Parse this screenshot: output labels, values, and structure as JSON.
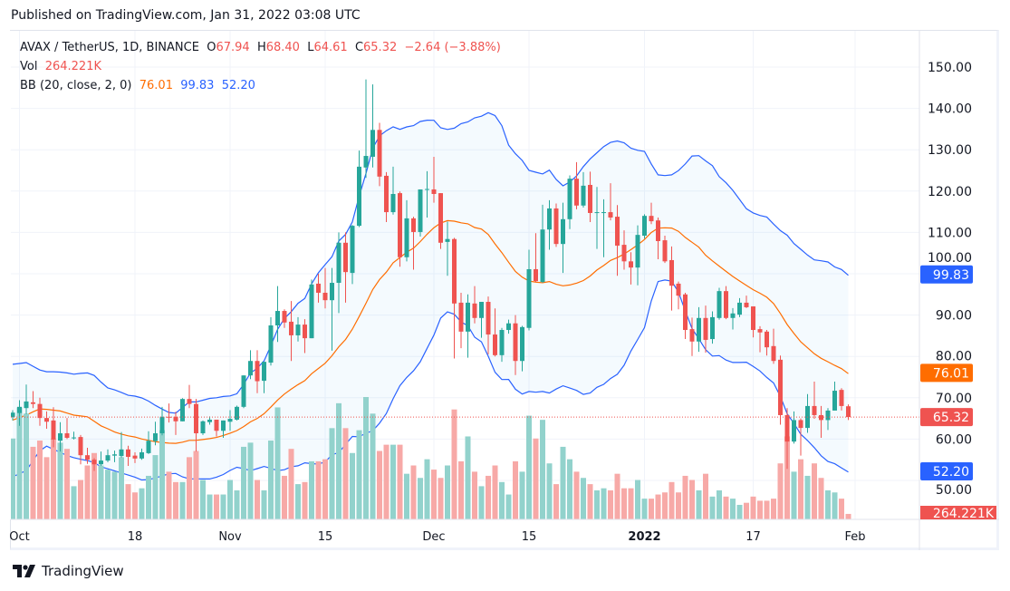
{
  "header": {
    "published": "Published on TradingView.com, Jan 31, 2022 03:08 UTC"
  },
  "legend": {
    "symbol": "AVAX / TetherUS, 1D, BINANCE",
    "o_label": "O",
    "o": "67.94",
    "h_label": "H",
    "h": "68.40",
    "l_label": "L",
    "l": "64.61",
    "c_label": "C",
    "c": "65.32",
    "change": "−2.64 (−3.88%)",
    "vol_label": "Vol",
    "vol": "264.221K",
    "bb_label": "BB (20, close, 2, 0)",
    "bb_basis": "76.01",
    "bb_upper": "99.83",
    "bb_lower": "52.20"
  },
  "footer": {
    "logo_text": "TradingView",
    "logo_icon": "tradingview-logo-icon"
  },
  "colors": {
    "up": "#26a69a",
    "down": "#ef5350",
    "vol_up": "#92d2cc",
    "vol_down": "#f7a9a7",
    "bb_band": "#2962ff",
    "bb_basis": "#ff6d00",
    "bb_fill": "#2196f3"
  },
  "chart_data": {
    "type": "candlestick",
    "title": "",
    "ylim": [
      50,
      150
    ],
    "grid": true,
    "y_ticks": [
      "150.00",
      "140.00",
      "130.00",
      "120.00",
      "110.00",
      "100.00",
      "90.00",
      "80.00",
      "70.00",
      "60.00",
      "50.00"
    ],
    "y_tick_values": [
      150,
      140,
      130,
      120,
      110,
      100,
      90,
      80,
      70,
      60,
      50
    ],
    "x_ticks": [
      {
        "label": "Oct",
        "date": "2021-10-01"
      },
      {
        "label": "18",
        "date": "2021-10-18"
      },
      {
        "label": "Nov",
        "date": "2021-11-01"
      },
      {
        "label": "15",
        "date": "2021-11-15"
      },
      {
        "label": "Dec",
        "date": "2021-12-01"
      },
      {
        "label": "15",
        "date": "2021-12-15"
      },
      {
        "label": "2022",
        "date": "2022-01-01",
        "bold": true
      },
      {
        "label": "17",
        "date": "2022-01-17"
      },
      {
        "label": "Feb",
        "date": "2022-02-01"
      }
    ],
    "price_labels": [
      {
        "text": "99.83",
        "value": 99.83,
        "color": "#2962ff"
      },
      {
        "text": "76.01",
        "value": 76.01,
        "color": "#ff6d00"
      },
      {
        "text": "65.32",
        "value": 65.32,
        "color": "#ef5350"
      },
      {
        "text": "52.20",
        "value": 52.2,
        "color": "#2962ff"
      }
    ],
    "volume_label": {
      "text": "264.221K",
      "color": "#ef5350"
    },
    "last_close": 65.32,
    "bb_period": 20,
    "bb_mult": 2,
    "bb_early": {
      "upper": [
        78.1,
        78.3,
        78.5,
        77.6,
        76.7,
        76.3,
        76.3,
        76.2,
        76.0,
        75.7,
        75.9,
        76.0,
        75.4,
        73.8,
        72.4,
        71.9,
        71.3,
        70.6,
        70.4
      ],
      "basis": [
        64.6,
        65.2,
        65.8,
        66.6,
        67.3,
        67.2,
        67.0,
        66.8,
        66.3,
        65.8,
        65.6,
        65.4,
        64.3,
        63.2,
        62.5,
        61.7,
        61.2,
        60.8,
        60.5
      ],
      "lower": [
        50.9,
        51.6,
        52.4,
        54.8,
        57.2,
        58.3,
        57.5,
        56.8,
        56.0,
        55.5,
        55.1,
        54.8,
        54.3,
        53.3,
        52.8,
        52.3,
        51.8,
        51.3,
        50.8
      ]
    },
    "candle_fields": [
      "date",
      "open",
      "high",
      "low",
      "close",
      "volume_k"
    ],
    "candles": [
      [
        "2021-09-30",
        65.3,
        67.0,
        64.5,
        66.4,
        3900
      ],
      [
        "2021-10-01",
        66.3,
        69.4,
        63.2,
        67.8,
        5400
      ],
      [
        "2021-10-02",
        67.5,
        73.2,
        66.0,
        69.1,
        5100
      ],
      [
        "2021-10-03",
        68.9,
        71.6,
        67.5,
        68.5,
        3500
      ],
      [
        "2021-10-04",
        68.5,
        70.0,
        63.2,
        65.1,
        3800
      ],
      [
        "2021-10-05",
        65.1,
        66.7,
        62.5,
        64.2,
        3000
      ],
      [
        "2021-10-06",
        64.5,
        67.7,
        58.0,
        59.9,
        3900
      ],
      [
        "2021-10-07",
        59.6,
        64.1,
        57.0,
        61.4,
        3700
      ],
      [
        "2021-10-08",
        61.4,
        65.1,
        60.0,
        60.3,
        3400
      ],
      [
        "2021-10-09",
        60.3,
        61.8,
        59.9,
        60.4,
        1600
      ],
      [
        "2021-10-10",
        60.5,
        61.0,
        53.9,
        56.1,
        1900
      ],
      [
        "2021-10-11",
        56.1,
        57.9,
        54.0,
        55.0,
        2600
      ],
      [
        "2021-10-12",
        55.0,
        55.4,
        52.3,
        53.9,
        3200
      ],
      [
        "2021-10-13",
        53.9,
        57.0,
        53.5,
        54.8,
        2600
      ],
      [
        "2021-10-14",
        54.8,
        57.5,
        54.4,
        56.1,
        2400
      ],
      [
        "2021-10-15",
        56.0,
        57.2,
        54.4,
        56.3,
        2300
      ],
      [
        "2021-10-16",
        55.9,
        61.7,
        55.5,
        57.5,
        3000
      ],
      [
        "2021-10-17",
        57.5,
        58.4,
        53.5,
        55.7,
        1700
      ],
      [
        "2021-10-18",
        56.0,
        56.8,
        54.2,
        55.3,
        1300
      ],
      [
        "2021-10-19",
        55.3,
        57.7,
        55.0,
        56.8,
        1500
      ],
      [
        "2021-10-20",
        56.6,
        61.9,
        56.4,
        59.6,
        2100
      ],
      [
        "2021-10-21",
        59.5,
        64.2,
        58.5,
        61.4,
        3100
      ],
      [
        "2021-10-22",
        61.4,
        67.8,
        60.9,
        65.4,
        4300
      ],
      [
        "2021-10-23",
        65.4,
        68.6,
        64.0,
        65.2,
        2300
      ],
      [
        "2021-10-24",
        65.4,
        66.6,
        61.0,
        64.3,
        1800
      ],
      [
        "2021-10-25",
        64.3,
        69.9,
        64.3,
        69.7,
        1800
      ],
      [
        "2021-10-26",
        69.7,
        73.1,
        67.5,
        68.5,
        3000
      ],
      [
        "2021-10-27",
        68.5,
        69.7,
        57.0,
        61.4,
        3300
      ],
      [
        "2021-10-28",
        61.4,
        64.5,
        61.0,
        64.3,
        1900
      ],
      [
        "2021-10-29",
        64.1,
        65.5,
        63.5,
        64.7,
        1200
      ],
      [
        "2021-10-30",
        64.7,
        64.7,
        60.6,
        62.0,
        1200
      ],
      [
        "2021-10-31",
        62.0,
        64.5,
        60.3,
        64.5,
        1200
      ],
      [
        "2021-11-01",
        64.2,
        67.0,
        62.0,
        64.9,
        1900
      ],
      [
        "2021-11-02",
        64.7,
        68.1,
        64.5,
        67.8,
        1400
      ],
      [
        "2021-11-03",
        67.8,
        75.4,
        67.5,
        75.4,
        3500
      ],
      [
        "2021-11-04",
        75.4,
        81.5,
        74.5,
        78.9,
        3700
      ],
      [
        "2021-11-05",
        78.9,
        81.5,
        71.1,
        74.0,
        1900
      ],
      [
        "2021-11-06",
        74.1,
        78.7,
        71.1,
        78.7,
        1400
      ],
      [
        "2021-11-07",
        78.5,
        89.5,
        77.8,
        87.5,
        3800
      ],
      [
        "2021-11-08",
        87.5,
        97.0,
        83.5,
        91.0,
        5400
      ],
      [
        "2021-11-09",
        91.0,
        91.4,
        86.9,
        88.2,
        2100
      ],
      [
        "2021-11-10",
        88.4,
        93.4,
        78.9,
        85.1,
        3400
      ],
      [
        "2021-11-11",
        85.1,
        89.5,
        83.6,
        87.7,
        1700
      ],
      [
        "2021-11-12",
        87.7,
        89.0,
        80.8,
        84.4,
        1800
      ],
      [
        "2021-11-13",
        84.4,
        98.6,
        84.4,
        97.4,
        2800
      ],
      [
        "2021-11-14",
        97.6,
        100.0,
        93.0,
        95.4,
        2800
      ],
      [
        "2021-11-15",
        95.4,
        101.4,
        91.6,
        93.6,
        2900
      ],
      [
        "2021-11-16",
        93.6,
        101.4,
        81.4,
        97.8,
        4400
      ],
      [
        "2021-11-17",
        97.8,
        110.0,
        90.5,
        107.5,
        5600
      ],
      [
        "2021-11-18",
        107.5,
        110.0,
        93.0,
        100.4,
        4400
      ],
      [
        "2021-11-19",
        100.2,
        111.8,
        97.5,
        111.6,
        3200
      ],
      [
        "2021-11-20",
        111.6,
        129.8,
        111.3,
        125.9,
        4300
      ],
      [
        "2021-11-21",
        125.7,
        147.0,
        123.2,
        128.5,
        5900
      ],
      [
        "2021-11-22",
        128.3,
        145.8,
        125.7,
        134.8,
        5100
      ],
      [
        "2021-11-23",
        134.8,
        136.5,
        121.2,
        123.5,
        3300
      ],
      [
        "2021-11-24",
        123.7,
        124.6,
        112.5,
        114.9,
        3600
      ],
      [
        "2021-11-25",
        114.9,
        125.9,
        114.3,
        119.3,
        3600
      ],
      [
        "2021-11-26",
        119.5,
        119.9,
        101.7,
        104.0,
        3600
      ],
      [
        "2021-11-27",
        104.0,
        117.8,
        103.0,
        113.4,
        2200
      ],
      [
        "2021-11-28",
        113.4,
        113.8,
        101.0,
        110.1,
        2600
      ],
      [
        "2021-11-29",
        110.1,
        120.4,
        109.0,
        120.4,
        2000
      ],
      [
        "2021-11-30",
        120.3,
        124.8,
        113.6,
        120.5,
        2900
      ],
      [
        "2021-12-01",
        120.4,
        128.3,
        117.2,
        119.3,
        2400
      ],
      [
        "2021-12-02",
        119.5,
        119.5,
        106.0,
        107.5,
        2000
      ],
      [
        "2021-12-03",
        107.7,
        112.6,
        99.5,
        108.4,
        2600
      ],
      [
        "2021-12-04",
        108.4,
        108.7,
        79.5,
        92.8,
        5300
      ],
      [
        "2021-12-05",
        93.0,
        95.4,
        82.0,
        86.0,
        2800
      ],
      [
        "2021-12-06",
        86.0,
        95.0,
        79.7,
        93.0,
        4000
      ],
      [
        "2021-12-07",
        92.8,
        97.0,
        88.0,
        89.3,
        2300
      ],
      [
        "2021-12-08",
        89.3,
        93.2,
        84.5,
        93.2,
        1600
      ],
      [
        "2021-12-09",
        93.2,
        94.5,
        80.5,
        85.3,
        2100
      ],
      [
        "2021-12-10",
        85.3,
        91.6,
        80.0,
        80.3,
        2600
      ],
      [
        "2021-12-11",
        80.3,
        86.9,
        78.7,
        86.4,
        1800
      ],
      [
        "2021-12-12",
        86.4,
        88.9,
        85.5,
        88.0,
        1200
      ],
      [
        "2021-12-13",
        88.0,
        90.0,
        75.5,
        78.9,
        2800
      ],
      [
        "2021-12-14",
        78.9,
        87.4,
        76.4,
        87.1,
        2300
      ],
      [
        "2021-12-15",
        86.9,
        105.8,
        86.3,
        101.1,
        5000
      ],
      [
        "2021-12-16",
        101.1,
        109.8,
        98.0,
        98.2,
        3900
      ],
      [
        "2021-12-17",
        98.0,
        116.7,
        97.8,
        110.7,
        4800
      ],
      [
        "2021-12-18",
        110.7,
        117.8,
        105.8,
        115.8,
        2700
      ],
      [
        "2021-12-19",
        115.8,
        117.0,
        106.5,
        107.2,
        1700
      ],
      [
        "2021-12-20",
        107.2,
        117.2,
        100.2,
        113.2,
        3500
      ],
      [
        "2021-12-21",
        113.2,
        123.8,
        110.8,
        123.0,
        2900
      ],
      [
        "2021-12-22",
        123.0,
        127.0,
        115.6,
        116.5,
        2300
      ],
      [
        "2021-12-23",
        116.5,
        124.6,
        116.0,
        121.3,
        2000
      ],
      [
        "2021-12-24",
        121.5,
        124.7,
        112.5,
        114.7,
        1700
      ],
      [
        "2021-12-25",
        114.8,
        121.0,
        106.0,
        114.9,
        1400
      ],
      [
        "2021-12-26",
        114.8,
        118.0,
        104.0,
        114.9,
        1500
      ],
      [
        "2021-12-27",
        114.9,
        121.9,
        112.9,
        113.6,
        1400
      ],
      [
        "2021-12-28",
        113.8,
        116.6,
        99.5,
        106.8,
        2200
      ],
      [
        "2021-12-29",
        107.0,
        110.5,
        101.0,
        103.0,
        1500
      ],
      [
        "2021-12-30",
        103.0,
        105.2,
        97.4,
        101.5,
        1500
      ],
      [
        "2021-12-31",
        101.5,
        111.7,
        97.2,
        109.4,
        1900
      ],
      [
        "2022-01-01",
        109.2,
        114.4,
        108.5,
        114.0,
        1000
      ],
      [
        "2022-01-02",
        114.0,
        117.2,
        112.0,
        112.7,
        1000
      ],
      [
        "2022-01-03",
        112.9,
        113.6,
        103.5,
        107.9,
        1200
      ],
      [
        "2022-01-04",
        108.1,
        109.2,
        102.6,
        103.0,
        1300
      ],
      [
        "2022-01-05",
        103.3,
        106.6,
        91.1,
        97.1,
        1800
      ],
      [
        "2022-01-06",
        97.6,
        98.1,
        91.4,
        94.7,
        1300
      ],
      [
        "2022-01-07",
        95.0,
        95.4,
        84.2,
        86.4,
        2100
      ],
      [
        "2022-01-08",
        86.6,
        89.4,
        80.1,
        83.6,
        1900
      ],
      [
        "2022-01-09",
        83.6,
        91.9,
        81.1,
        89.3,
        1400
      ],
      [
        "2022-01-10",
        89.3,
        92.3,
        80.9,
        84.0,
        2200
      ],
      [
        "2022-01-11",
        84.2,
        90.9,
        83.1,
        89.5,
        1100
      ],
      [
        "2022-01-12",
        89.3,
        96.6,
        88.9,
        95.8,
        1400
      ],
      [
        "2022-01-13",
        95.8,
        97.0,
        89.0,
        89.3,
        1100
      ],
      [
        "2022-01-14",
        89.3,
        91.7,
        86.5,
        90.4,
        1000
      ],
      [
        "2022-01-15",
        90.1,
        94.1,
        89.5,
        93.0,
        700
      ],
      [
        "2022-01-16",
        93.0,
        94.7,
        91.7,
        91.9,
        800
      ],
      [
        "2022-01-17",
        92.1,
        92.1,
        84.6,
        86.4,
        1100
      ],
      [
        "2022-01-18",
        86.6,
        87.3,
        81.0,
        85.8,
        900
      ],
      [
        "2022-01-19",
        86.0,
        86.4,
        80.2,
        82.2,
        900
      ],
      [
        "2022-01-20",
        82.5,
        86.7,
        78.2,
        78.9,
        1000
      ],
      [
        "2022-01-21",
        79.2,
        80.2,
        63.5,
        65.8,
        2700
      ],
      [
        "2022-01-22",
        65.8,
        67.5,
        52.8,
        59.4,
        4000
      ],
      [
        "2022-01-23",
        59.4,
        66.7,
        58.9,
        64.6,
        2300
      ],
      [
        "2022-01-24",
        64.6,
        65.0,
        56.0,
        62.7,
        2900
      ],
      [
        "2022-01-25",
        62.7,
        70.9,
        61.5,
        68.0,
        2100
      ],
      [
        "2022-01-26",
        68.0,
        73.9,
        64.9,
        65.8,
        2700
      ],
      [
        "2022-01-27",
        65.8,
        68.0,
        60.3,
        64.6,
        2000
      ],
      [
        "2022-01-28",
        64.6,
        67.5,
        62.2,
        66.9,
        1400
      ],
      [
        "2022-01-29",
        66.9,
        73.9,
        66.9,
        71.7,
        1300
      ],
      [
        "2022-01-30",
        71.9,
        72.3,
        66.9,
        68.0,
        1000
      ],
      [
        "2022-01-31",
        67.94,
        68.4,
        64.61,
        65.32,
        264.221
      ]
    ]
  }
}
